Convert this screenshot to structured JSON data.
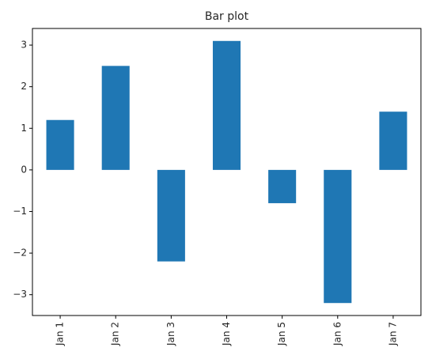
{
  "chart_data": {
    "type": "bar",
    "title": "Bar plot",
    "xlabel": "",
    "ylabel": "",
    "categories": [
      "Jan 1",
      "Jan 2",
      "Jan 3",
      "Jan 4",
      "Jan 5",
      "Jan 6",
      "Jan 7"
    ],
    "values": [
      1.2,
      2.5,
      -2.2,
      3.1,
      -0.8,
      -3.2,
      1.4
    ],
    "ylim": [
      -3.5,
      3.4
    ],
    "yticks": [
      -3,
      -2,
      -1,
      0,
      1,
      2,
      3
    ],
    "grid": false,
    "bar_color": "#1f77b4",
    "x_tick_rotation": "vertical"
  }
}
